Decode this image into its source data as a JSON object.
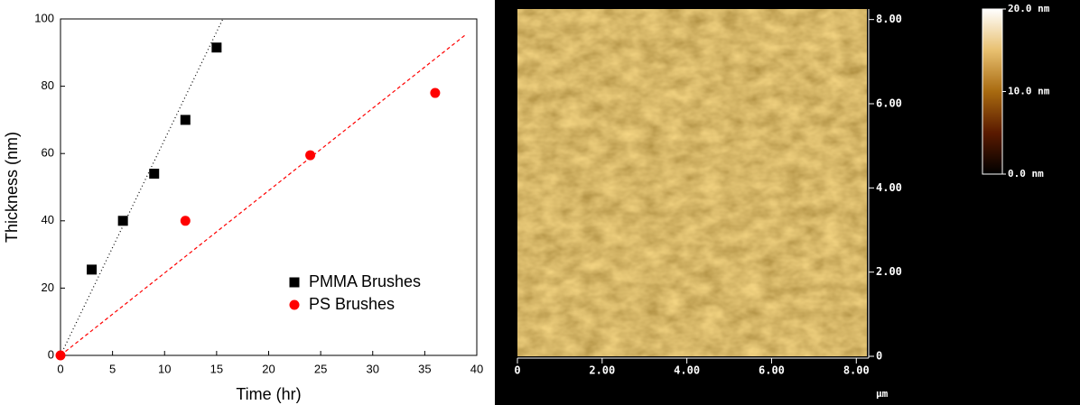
{
  "chart_data": [
    {
      "type": "scatter",
      "x_label": "Time (hr)",
      "y_label": "Thickness (nm)",
      "xlim": [
        0,
        40
      ],
      "ylim": [
        0,
        100
      ],
      "xticks": [
        0,
        5,
        10,
        15,
        20,
        25,
        30,
        35,
        40
      ],
      "yticks": [
        0,
        20,
        40,
        60,
        80,
        100
      ],
      "series": [
        {
          "name": "PMMA Brushes",
          "color": "#000000",
          "marker": "square",
          "x": [
            3,
            6,
            9,
            12,
            15
          ],
          "values": [
            25.5,
            40,
            54,
            70,
            91.5
          ]
        },
        {
          "name": "PS Brushes",
          "color": "#ff0000",
          "marker": "circle",
          "x": [
            0,
            12,
            24,
            36
          ],
          "values": [
            0,
            40,
            59.5,
            78
          ]
        }
      ],
      "trend_lines": [
        {
          "color": "#000000",
          "dash": "1 3",
          "x": [
            0,
            15.6
          ],
          "values": [
            0,
            100
          ]
        },
        {
          "color": "#ff0000",
          "dash": "4 3",
          "x": [
            0,
            39
          ],
          "values": [
            0,
            95.5
          ]
        }
      ]
    },
    {
      "type": "image",
      "x_label": "µm",
      "xlim": [
        0,
        8.25
      ],
      "ylim": [
        0,
        8.25
      ],
      "xticks": [
        0,
        {
          "value": 2,
          "label": "2.00"
        },
        {
          "value": 4,
          "label": "4.00"
        },
        {
          "value": 6,
          "label": "6.00"
        },
        {
          "value": 8,
          "label": "8.00"
        }
      ],
      "yticks": [
        0,
        {
          "value": 2,
          "label": "2.00"
        },
        {
          "value": 4,
          "label": "4.00"
        },
        {
          "value": 6,
          "label": "6.00"
        },
        {
          "value": 8,
          "label": "8.00"
        }
      ],
      "zlim": [
        0,
        20
      ],
      "zticks": [
        {
          "value": 0,
          "label": "0.0 nm"
        },
        {
          "value": 10,
          "label": "10.0 nm"
        },
        {
          "value": 20,
          "label": "20.0 nm"
        }
      ],
      "colormap": [
        "#000000",
        "#5a1a00",
        "#a86a10",
        "#e8c070",
        "#ffffff"
      ]
    }
  ]
}
